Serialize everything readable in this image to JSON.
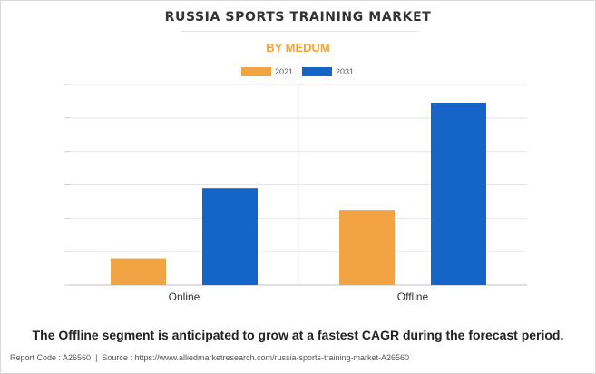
{
  "header": {
    "title": "RUSSIA SPORTS TRAINING MARKET",
    "subtitle": "BY MEDUM"
  },
  "legend": [
    {
      "label": "2021",
      "color": "#f2a444"
    },
    {
      "label": "2031",
      "color": "#1565c8"
    }
  ],
  "chart_data": {
    "type": "bar",
    "title": "RUSSIA SPORTS TRAINING MARKET",
    "subtitle": "BY MEDUM",
    "categories": [
      "Online",
      "Offline"
    ],
    "series": [
      {
        "name": "2021",
        "values": [
          0.8,
          2.25
        ],
        "color": "#f2a444"
      },
      {
        "name": "2031",
        "values": [
          2.9,
          5.45
        ],
        "color": "#1565c8"
      }
    ],
    "ylim": [
      0,
      6
    ],
    "grid": true,
    "legend_position": "top-center",
    "xlabel": "",
    "ylabel": ""
  },
  "caption": "The Offline segment is anticipated to grow at a fastest CAGR during the forecast period.",
  "footer": {
    "report_code": "Report Code : A26560",
    "separator": "|",
    "source": "Source : https://www.alliedmarketresearch.com/russia-sports-training-market-A26560"
  }
}
